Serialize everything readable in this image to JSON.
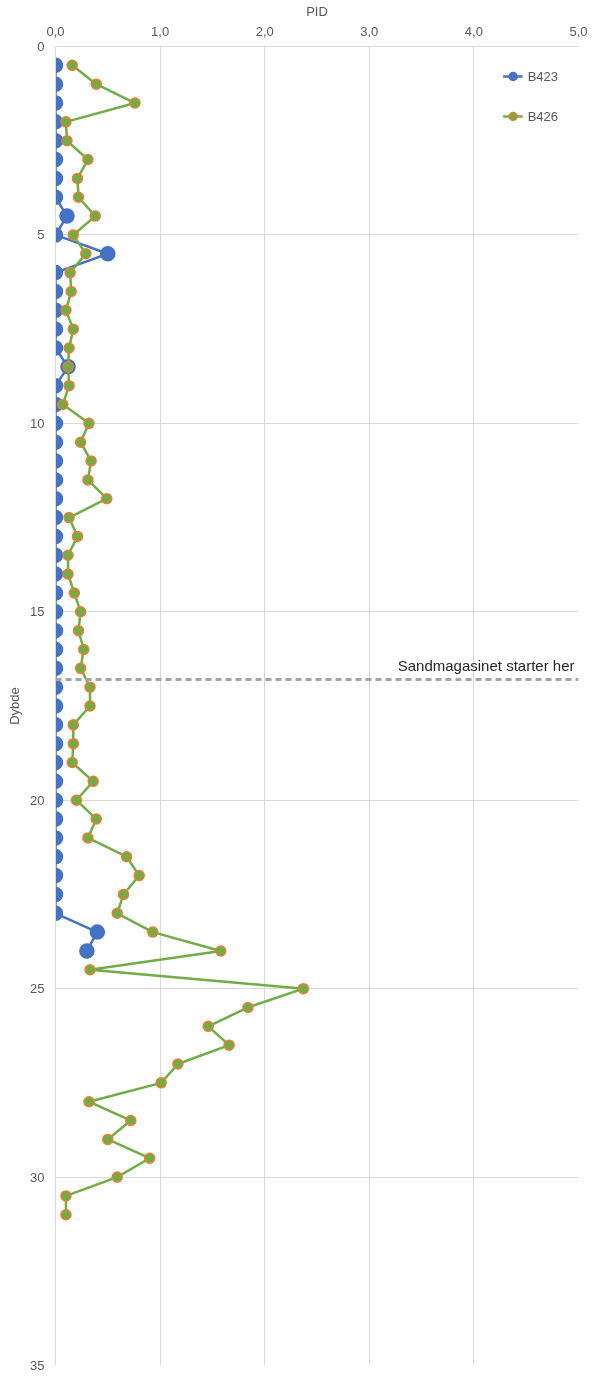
{
  "chart_data": {
    "type": "line",
    "xlabel": "PID",
    "ylabel": "Dybde",
    "xlim": [
      0,
      5
    ],
    "xticks": [
      {
        "value": 0,
        "label": "0,0"
      },
      {
        "value": 1,
        "label": "1,0"
      },
      {
        "value": 2,
        "label": "2,0"
      },
      {
        "value": 3,
        "label": "3,0"
      },
      {
        "value": 4,
        "label": "4,0"
      },
      {
        "value": 5,
        "label": "5,0"
      }
    ],
    "ylim": [
      35,
      0
    ],
    "yticks": [
      0,
      5,
      10,
      15,
      20,
      25,
      30,
      35
    ],
    "grid": true,
    "legend": "top right",
    "marker": "circle",
    "line_style": "solid",
    "series": [
      {
        "name": "B423",
        "color": "#4472c4",
        "x": [
          0,
          0,
          0,
          0,
          0,
          0,
          0,
          0,
          0.11,
          0,
          0.5,
          0,
          0,
          0,
          0,
          0,
          0.12,
          0,
          0,
          0,
          0,
          0,
          0,
          0,
          0,
          0,
          0,
          0,
          0,
          0,
          0,
          0,
          0,
          0,
          0,
          0,
          0,
          0,
          0,
          0,
          0,
          0,
          0,
          0,
          0,
          0,
          0.4,
          0.3
        ],
        "values": [
          0.5,
          1,
          1.5,
          2,
          2.5,
          3,
          3.5,
          4,
          4.5,
          5,
          5.5,
          6,
          6.5,
          7,
          7.5,
          8,
          8.5,
          9,
          9.5,
          10,
          10.5,
          11,
          11.5,
          12,
          12.5,
          13,
          13.5,
          14,
          14.5,
          15,
          15.5,
          16,
          16.5,
          17,
          17.5,
          18,
          18.5,
          19,
          19.5,
          20,
          20.5,
          21,
          21.5,
          22,
          22.5,
          23,
          23.5,
          24
        ]
      },
      {
        "name": "B426",
        "color": "#70ad47",
        "x": [
          0.16,
          0.39,
          0.76,
          0.1,
          0.11,
          0.31,
          0.21,
          0.22,
          0.38,
          0.17,
          0.29,
          0.14,
          0.15,
          0.1,
          0.17,
          0.13,
          0.12,
          0.13,
          0.07,
          0.32,
          0.24,
          0.34,
          0.31,
          0.49,
          0.13,
          0.21,
          0.12,
          0.12,
          0.18,
          0.24,
          0.22,
          0.27,
          0.24,
          0.33,
          0.33,
          0.17,
          0.17,
          0.16,
          0.36,
          0.2,
          0.39,
          0.31,
          0.68,
          0.8,
          0.65,
          0.59,
          0.93,
          1.58,
          0.33,
          2.37,
          1.84,
          1.46,
          1.66,
          1.17,
          1.01,
          0.32,
          0.72,
          0.5,
          0.9,
          0.59,
          0.1,
          0.1
        ],
        "values": [
          0.5,
          1,
          1.5,
          2,
          2.5,
          3,
          3.5,
          4,
          4.5,
          5,
          5.5,
          6,
          6.5,
          7,
          7.5,
          8,
          8.5,
          9,
          9.5,
          10,
          10.5,
          11,
          11.5,
          12,
          12.5,
          13,
          13.5,
          14,
          14.5,
          15,
          15.5,
          16,
          16.5,
          17,
          17.5,
          18,
          18.5,
          19,
          19.5,
          20,
          20.5,
          21,
          21.5,
          22,
          22.5,
          23,
          23.5,
          24,
          24.5,
          25,
          25.5,
          26,
          26.5,
          27,
          27.5,
          28,
          28.5,
          29,
          29.5,
          30,
          30.5,
          31
        ]
      }
    ],
    "ref_lines": [
      {
        "axis": "y",
        "value": 16.8,
        "label": "Sandmagasinet starter her",
        "color": "#a5a5a5",
        "line_style": "dashed"
      }
    ]
  }
}
